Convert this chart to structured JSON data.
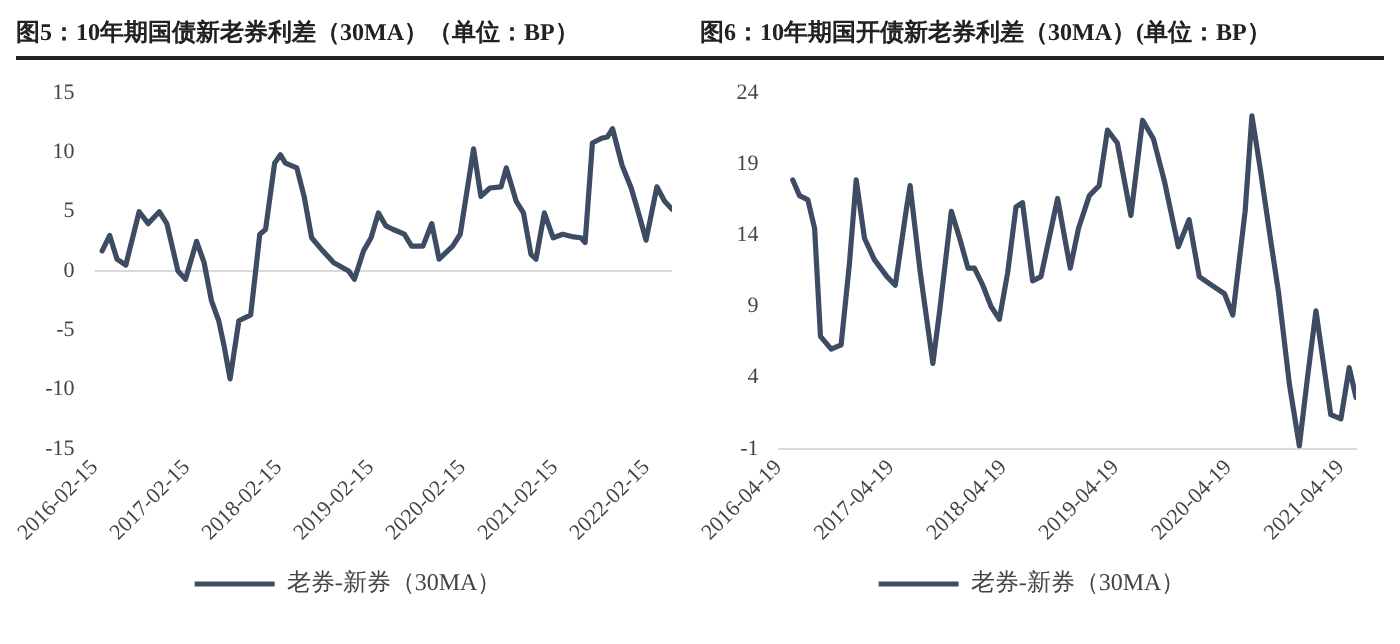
{
  "chart_data": [
    {
      "type": "line",
      "title": "图5：10年期国债新老券利差（30MA）（单位：BP）",
      "x": [
        "2016-03-16",
        "2016-04-15",
        "2016-05-14",
        "2016-06-18",
        "2016-08-10",
        "2016-09-15",
        "2016-10-29",
        "2016-11-28",
        "2017-01-11",
        "2017-02-10",
        "2017-03-26",
        "2017-04-25",
        "2017-05-24",
        "2017-06-22",
        "2017-07-13",
        "2017-08-06",
        "2017-09-10",
        "2017-10-27",
        "2017-12-02",
        "2017-12-25",
        "2018-01-30",
        "2018-02-22",
        "2018-03-14",
        "2018-04-28",
        "2018-05-27",
        "2018-06-26",
        "2018-08-09",
        "2018-09-22",
        "2018-11-20",
        "2018-12-13",
        "2019-01-18",
        "2019-02-17",
        "2019-03-18",
        "2019-04-17",
        "2019-05-16",
        "2019-06-29",
        "2019-07-28",
        "2019-09-11",
        "2019-10-16",
        "2019-11-14",
        "2020-01-07",
        "2020-02-06",
        "2020-03-30",
        "2020-04-28",
        "2020-06-03",
        "2020-07-17",
        "2020-08-07",
        "2020-09-15",
        "2020-10-14",
        "2020-11-13",
        "2020-12-03",
        "2021-01-05",
        "2021-02-09",
        "2021-03-19",
        "2021-04-24",
        "2021-05-30",
        "2021-06-16",
        "2021-07-15",
        "2021-08-20",
        "2021-09-12",
        "2021-10-03",
        "2021-11-10",
        "2021-12-16",
        "2022-01-14",
        "2022-02-13",
        "2022-03-28",
        "2022-04-27",
        "2022-05-27"
      ],
      "series": [
        {
          "name": "老券-新券（30MA）",
          "color": "#3d4b63",
          "values": [
            1.7,
            3,
            1,
            0.5,
            5,
            4,
            5,
            4,
            0,
            -0.7,
            2.5,
            0.7,
            -2.5,
            -4.2,
            -6.3,
            -9.1,
            -4.2,
            -3.7,
            3.1,
            3.5,
            9.1,
            9.8,
            9.1,
            8.7,
            6.3,
            2.8,
            1.7,
            0.7,
            0,
            -0.7,
            1.7,
            2.8,
            4.9,
            3.8,
            3.5,
            3.1,
            2.1,
            2.1,
            4,
            1,
            2.1,
            3.1,
            10.3,
            6.3,
            7,
            7.1,
            8.7,
            5.9,
            4.9,
            1.4,
            1,
            4.9,
            2.8,
            3.1,
            2.9,
            2.8,
            2.4,
            10.8,
            11.2,
            11.3,
            12,
            8.9,
            7,
            4.9,
            2.6,
            7.1,
            5.9,
            5.2
          ]
        }
      ],
      "xlim": [
        "2016-02-15",
        "2022-05-27"
      ],
      "xticks": [
        "2016-02-15",
        "2017-02-15",
        "2018-02-15",
        "2019-02-15",
        "2020-02-15",
        "2021-02-15",
        "2022-02-15"
      ],
      "ylim": [
        -15,
        15
      ],
      "yticks": [
        -15,
        -10,
        -5,
        0,
        5,
        10,
        15
      ],
      "ref_lines": [
        {
          "axis": "y",
          "value": 0,
          "color": "#d9d9d9"
        }
      ],
      "grid": false,
      "legend": "bottom",
      "marker": "none",
      "line_style": "solid"
    },
    {
      "type": "line",
      "title": "图6：10年期国开债新老券利差（30MA）(单位：BP）",
      "x": [
        "2016-06-04",
        "2016-06-26",
        "2016-07-23",
        "2016-08-14",
        "2016-09-02",
        "2016-10-07",
        "2016-11-08",
        "2016-12-05",
        "2016-12-27",
        "2017-01-23",
        "2017-02-24",
        "2017-04-06",
        "2017-05-03",
        "2017-06-07",
        "2017-06-20",
        "2017-07-23",
        "2017-09-02",
        "2017-09-24",
        "2017-11-01",
        "2017-11-28",
        "2017-12-25",
        "2018-01-15",
        "2018-02-11",
        "2018-03-10",
        "2018-04-06",
        "2018-05-03",
        "2018-05-30",
        "2018-06-20",
        "2018-07-23",
        "2018-08-19",
        "2018-10-12",
        "2018-11-22",
        "2018-12-19",
        "2019-01-23",
        "2019-02-24",
        "2019-03-23",
        "2019-04-24",
        "2019-06-07",
        "2019-07-15",
        "2019-08-19",
        "2019-09-24",
        "2019-11-08",
        "2019-12-13",
        "2020-01-15",
        "2020-02-24",
        "2020-04-06",
        "2020-05-03",
        "2020-06-12",
        "2020-07-04",
        "2020-07-31",
        "2020-09-02",
        "2020-09-29",
        "2020-11-03",
        "2020-12-05",
        "2021-01-01",
        "2021-01-28",
        "2021-03-17",
        "2021-04-19",
        "2021-05-16",
        "2021-06-07"
      ],
      "series": [
        {
          "name": "老券-新券（30MA）",
          "color": "#3d4b63",
          "values": [
            17.9,
            16.8,
            16.5,
            14.5,
            6.9,
            6,
            6.3,
            12,
            17.9,
            13.8,
            12.3,
            11.1,
            10.5,
            15.7,
            17.5,
            11.4,
            5,
            8.7,
            15.7,
            13.8,
            11.7,
            11.7,
            10.5,
            9,
            8.1,
            11.4,
            16,
            16.3,
            10.8,
            11.1,
            16.6,
            11.7,
            14.5,
            16.8,
            17.5,
            21.4,
            20.5,
            15.4,
            22.1,
            20.8,
            17.8,
            13.2,
            15.1,
            11.1,
            10.5,
            9.9,
            8.4,
            15.7,
            22.4,
            18.7,
            13.8,
            9.9,
            3.5,
            -0.8,
            4.1,
            8.7,
            1.4,
            1.1,
            4.7,
            2.6
          ]
        }
      ],
      "xlim": [
        "2016-04-19",
        "2021-06-07"
      ],
      "xticks": [
        "2016-04-19",
        "2017-04-19",
        "2018-04-19",
        "2019-04-19",
        "2020-04-19",
        "2021-04-19"
      ],
      "ylim": [
        -1,
        24
      ],
      "yticks": [
        -1,
        4,
        9,
        14,
        19,
        24
      ],
      "grid": false,
      "legend": "bottom",
      "marker": "none",
      "line_style": "solid"
    }
  ]
}
